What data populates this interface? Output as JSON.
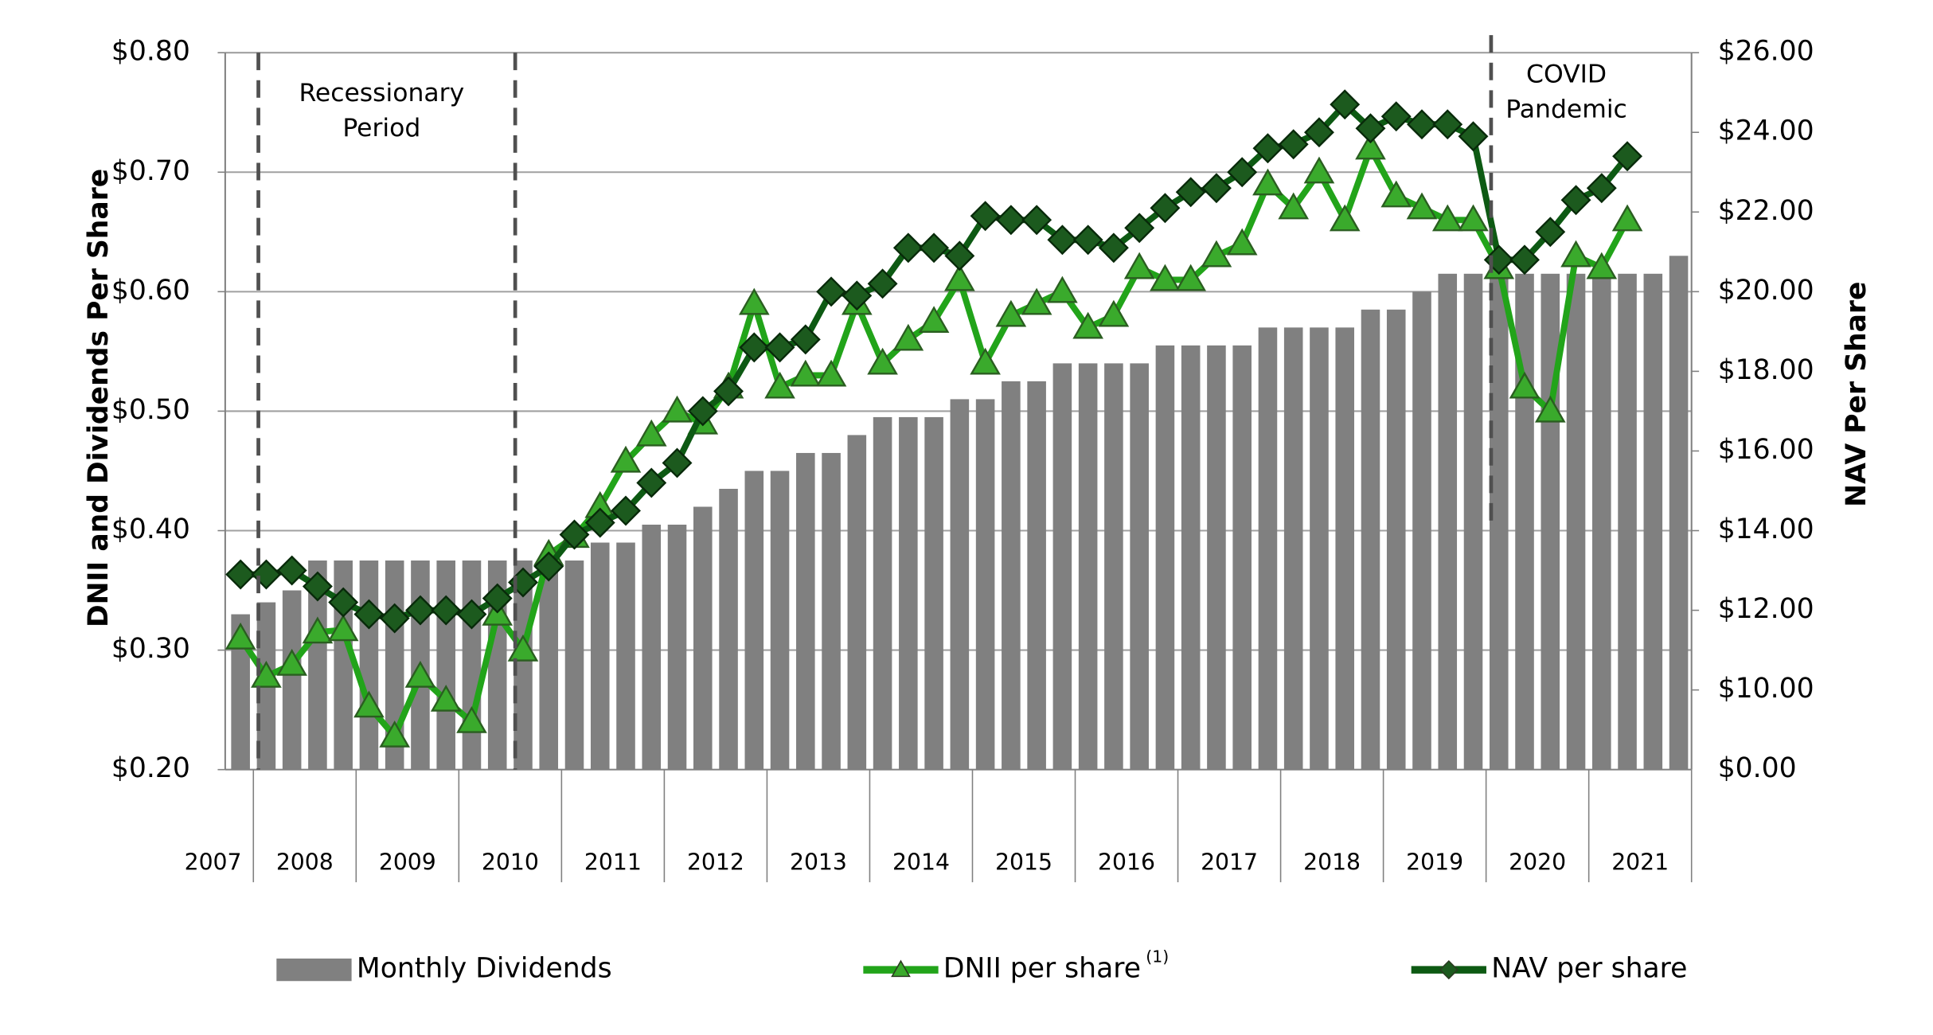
{
  "chart_data": {
    "type": "bar-line",
    "y_axis_label": "DNII and Dividends Per Share",
    "y2_axis_label": "NAV Per Share",
    "annotations": [
      [
        "Recessionary",
        "Period"
      ],
      [
        "COVID",
        "Pandemic"
      ]
    ],
    "categories": [
      "2007",
      "2008",
      null,
      null,
      null,
      "2009",
      null,
      null,
      null,
      "2010",
      null,
      null,
      null,
      "2011",
      null,
      null,
      null,
      "2012",
      null,
      null,
      null,
      "2013",
      null,
      null,
      null,
      "2014",
      null,
      null,
      null,
      "2015",
      null,
      null,
      null,
      "2016",
      null,
      null,
      null,
      "2017",
      null,
      null,
      null,
      "2018",
      null,
      null,
      null,
      "2019",
      null,
      null,
      null,
      "2020",
      null,
      null,
      null,
      "2021",
      null,
      null,
      null
    ],
    "series": [
      {
        "name": "Monthly Dividends",
        "type": "bar",
        "color": "#808080",
        "values": [
          0.33,
          0.34,
          0.35,
          0.375,
          0.375,
          0.375,
          0.375,
          0.375,
          0.375,
          0.375,
          0.375,
          0.375,
          0.375,
          0.375,
          0.39,
          0.39,
          0.405,
          0.405,
          0.42,
          0.435,
          0.45,
          0.45,
          0.465,
          0.465,
          0.48,
          0.495,
          0.495,
          0.495,
          0.51,
          0.51,
          0.525,
          0.525,
          0.54,
          0.54,
          0.54,
          0.54,
          0.555,
          0.555,
          0.555,
          0.555,
          0.57,
          0.57,
          0.57,
          0.57,
          0.585,
          0.585,
          0.6,
          0.615,
          0.615,
          0.615,
          0.615,
          0.615,
          0.615,
          0.615,
          0.615,
          0.615,
          0.63
        ]
      },
      {
        "name": "DNII per share",
        "note_marker": "(1)",
        "type": "line",
        "marker": "triangle",
        "color": "#22a41a",
        "values": [
          0.31,
          0.278,
          0.288,
          0.315,
          0.317,
          0.253,
          0.228,
          0.278,
          0.258,
          0.24,
          0.33,
          0.3,
          0.38,
          0.395,
          0.42,
          0.458,
          0.48,
          0.5,
          0.49,
          0.52,
          0.59,
          0.52,
          0.53,
          0.53,
          0.59,
          0.54,
          0.56,
          0.575,
          0.61,
          0.54,
          0.58,
          0.59,
          0.6,
          0.57,
          0.58,
          0.62,
          0.61,
          0.61,
          0.63,
          0.64,
          0.69,
          0.67,
          0.7,
          0.66,
          0.72,
          0.68,
          0.67,
          0.66,
          0.66,
          0.62,
          0.52,
          0.5,
          0.63,
          0.62,
          0.66,
          null,
          null
        ]
      },
      {
        "name": "NAV per share",
        "type": "line",
        "marker": "diamond",
        "color": "#0d5a13",
        "axis": "y2",
        "values": [
          12.9,
          12.9,
          13.0,
          12.6,
          12.2,
          11.9,
          11.8,
          12.0,
          12.0,
          11.9,
          12.3,
          12.7,
          13.1,
          13.9,
          14.2,
          14.5,
          15.2,
          15.7,
          17.0,
          17.5,
          18.6,
          18.6,
          18.8,
          20.0,
          19.9,
          20.2,
          21.1,
          21.1,
          20.9,
          21.9,
          21.8,
          21.8,
          21.3,
          21.3,
          21.1,
          21.6,
          22.1,
          22.5,
          22.6,
          23.0,
          23.6,
          23.7,
          24.0,
          24.7,
          24.1,
          24.4,
          24.2,
          24.2,
          23.9,
          20.8,
          20.8,
          21.5,
          22.3,
          22.6,
          23.4,
          null,
          null
        ]
      }
    ],
    "ylim": [
      0.2,
      0.8
    ],
    "yticks": [
      {
        "value": 0.2,
        "label": "$0.20"
      },
      {
        "value": 0.3,
        "label": "$0.30"
      },
      {
        "value": 0.4,
        "label": "$0.40"
      },
      {
        "value": 0.5,
        "label": "$0.50"
      },
      {
        "value": 0.6,
        "label": "$0.60"
      },
      {
        "value": 0.7,
        "label": "$0.70"
      },
      {
        "value": 0.8,
        "label": "$0.80"
      }
    ],
    "y2lim": [
      8,
      26
    ],
    "y2ticks": [
      {
        "value": 10,
        "label": "$10.00"
      },
      {
        "value": 12,
        "label": "$12.00"
      },
      {
        "value": 14,
        "label": "$14.00"
      },
      {
        "value": 16,
        "label": "$16.00"
      },
      {
        "value": 18,
        "label": "$18.00"
      },
      {
        "value": 20,
        "label": "$20.00"
      },
      {
        "value": 22,
        "label": "$22.00"
      },
      {
        "value": 24,
        "label": "$24.00"
      },
      {
        "value": 26,
        "label": "$26.00"
      }
    ],
    "y2_break_label": "$0.00",
    "grid": true
  }
}
